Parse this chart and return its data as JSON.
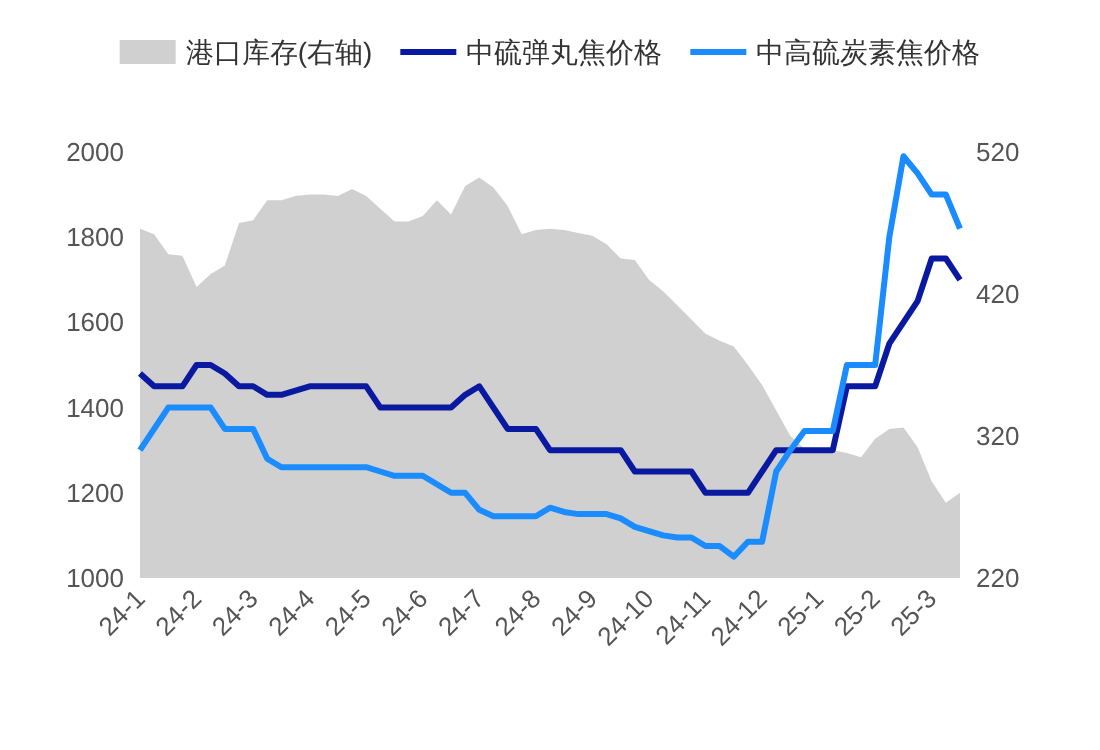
{
  "chart_data": {
    "type": "line",
    "categories": [
      "24-1",
      null,
      null,
      null,
      "24-2",
      null,
      null,
      null,
      "24-3",
      null,
      null,
      null,
      "24-4",
      null,
      null,
      null,
      "24-5",
      null,
      null,
      null,
      "24-6",
      null,
      null,
      null,
      "24-7",
      null,
      null,
      null,
      "24-8",
      null,
      null,
      null,
      "24-9",
      null,
      null,
      null,
      "24-10",
      null,
      null,
      null,
      "24-11",
      null,
      null,
      null,
      "24-12",
      null,
      null,
      null,
      "25-1",
      null,
      null,
      null,
      "25-2",
      null,
      null,
      null,
      "25-3",
      null,
      null
    ],
    "series": [
      {
        "name": "港口库存(右轴)",
        "type": "area",
        "axis": "y2",
        "color": "#d0d0d0",
        "values": [
          466,
          462,
          448,
          447,
          425,
          434,
          440,
          470,
          472,
          486,
          486,
          489,
          490,
          490,
          489,
          494,
          489,
          480,
          471,
          471,
          475,
          486,
          476,
          496,
          502,
          495,
          482,
          462,
          465,
          466,
          465,
          463,
          461,
          455,
          445,
          444,
          430,
          422,
          412,
          402,
          392,
          387,
          383,
          370,
          356,
          338,
          320,
          311,
          311,
          310,
          308,
          305,
          318,
          325,
          326,
          312,
          288,
          273,
          280
        ]
      },
      {
        "name": "中硫弹丸焦价格",
        "color": "#0a1aa0",
        "values": [
          1480,
          1450,
          1450,
          1450,
          1500,
          1500,
          1480,
          1450,
          1450,
          1430,
          1430,
          1440,
          1450,
          1450,
          1450,
          1450,
          1450,
          1400,
          1400,
          1400,
          1400,
          1400,
          1400,
          1430,
          1450,
          1400,
          1350,
          1350,
          1350,
          1300,
          1300,
          1300,
          1300,
          1300,
          1300,
          1250,
          1250,
          1250,
          1250,
          1250,
          1200,
          1200,
          1200,
          1200,
          1250,
          1300,
          1300,
          1300,
          1300,
          1300,
          1450,
          1450,
          1450,
          1550,
          1600,
          1650,
          1750,
          1750,
          1700
        ]
      },
      {
        "name": "中高硫炭素焦价格",
        "color": "#1a8cff",
        "values": [
          1300,
          1350,
          1400,
          1400,
          1400,
          1400,
          1350,
          1350,
          1350,
          1280,
          1260,
          1260,
          1260,
          1260,
          1260,
          1260,
          1260,
          1250,
          1240,
          1240,
          1240,
          1220,
          1200,
          1200,
          1160,
          1145,
          1145,
          1145,
          1145,
          1165,
          1155,
          1150,
          1150,
          1150,
          1140,
          1120,
          1110,
          1100,
          1095,
          1095,
          1075,
          1075,
          1050,
          1085,
          1085,
          1250,
          1300,
          1345,
          1345,
          1345,
          1500,
          1500,
          1500,
          1800,
          1990,
          1950,
          1900,
          1900,
          1820
        ]
      }
    ],
    "ylim": [
      1000,
      2000
    ],
    "yticks": [
      1000,
      1200,
      1400,
      1600,
      1800,
      2000
    ],
    "y2lim": [
      220,
      520
    ],
    "y2ticks": [
      220,
      320,
      420,
      520
    ],
    "grid": false,
    "legend": "top",
    "marker": "none",
    "line_style": "solid"
  }
}
